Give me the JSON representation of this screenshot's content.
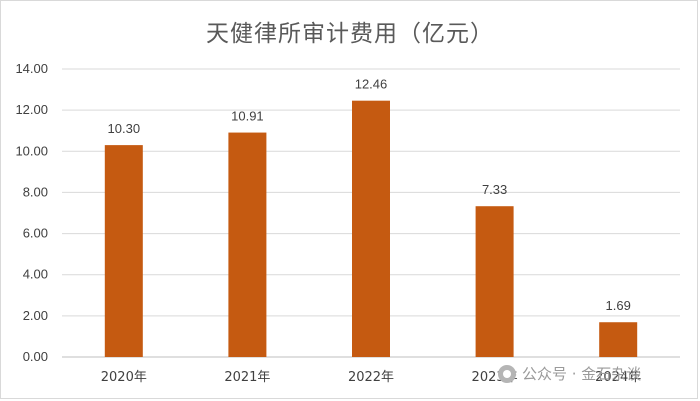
{
  "chart_data": {
    "type": "bar",
    "title": "天健律所审计费用（亿元）",
    "categories": [
      "2020年",
      "2021年",
      "2022年",
      "2023年",
      "2024年"
    ],
    "values": [
      10.3,
      10.91,
      12.46,
      7.33,
      1.69
    ],
    "data_labels": [
      "10.30",
      "10.91",
      "12.46",
      "7.33",
      "1.69"
    ],
    "ylim": [
      0,
      14
    ],
    "yticks": [
      "0.00",
      "2.00",
      "4.00",
      "6.00",
      "8.00",
      "10.00",
      "12.00",
      "14.00"
    ],
    "ytick_values": [
      0,
      2,
      4,
      6,
      8,
      10,
      12,
      14
    ],
    "bar_color": "#C55A11",
    "grid": true,
    "legend": "none",
    "xlabel": "",
    "ylabel": ""
  },
  "watermark": {
    "text": "公众号 · 金石杂谈",
    "icon": "wechat-icon"
  }
}
